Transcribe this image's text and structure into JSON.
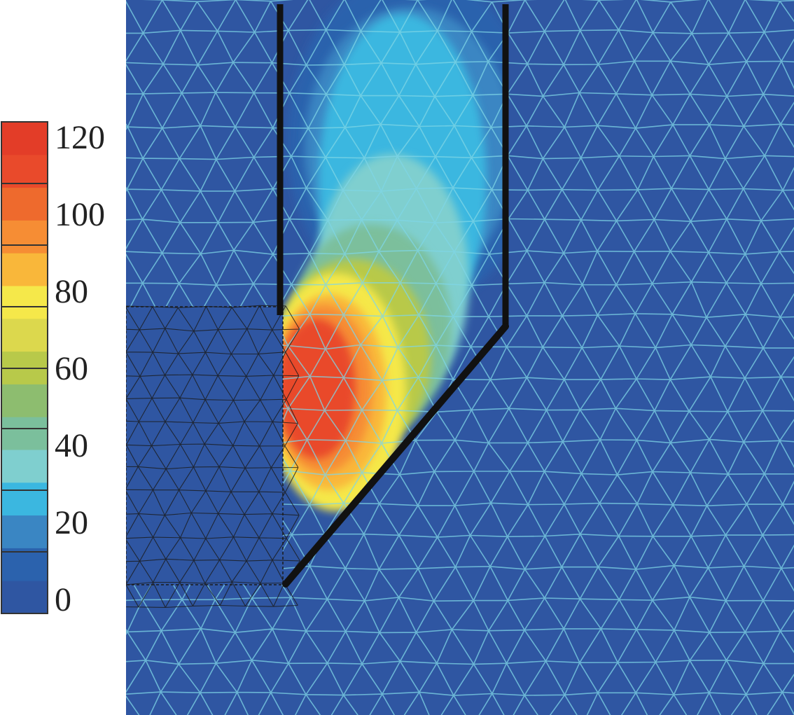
{
  "colorbar": {
    "ticks": [
      "120",
      "100",
      "80",
      "60",
      "40",
      "20",
      "0"
    ],
    "colors": [
      "#2f56a2",
      "#2b62ad",
      "#3a86c3",
      "#3bb7e0",
      "#7fcfcf",
      "#7bbf9c",
      "#8dbd6f",
      "#b8c94a",
      "#dcd84d",
      "#f5e84a",
      "#f9b73a",
      "#f68d34",
      "#ee6a2d",
      "#e94a2b",
      "#e33d28"
    ],
    "range": [
      0,
      130
    ]
  },
  "field": {
    "background": "#2f56a2",
    "mesh_light": "#7fd6e6",
    "mesh_dark": "#1a1a1a"
  }
}
